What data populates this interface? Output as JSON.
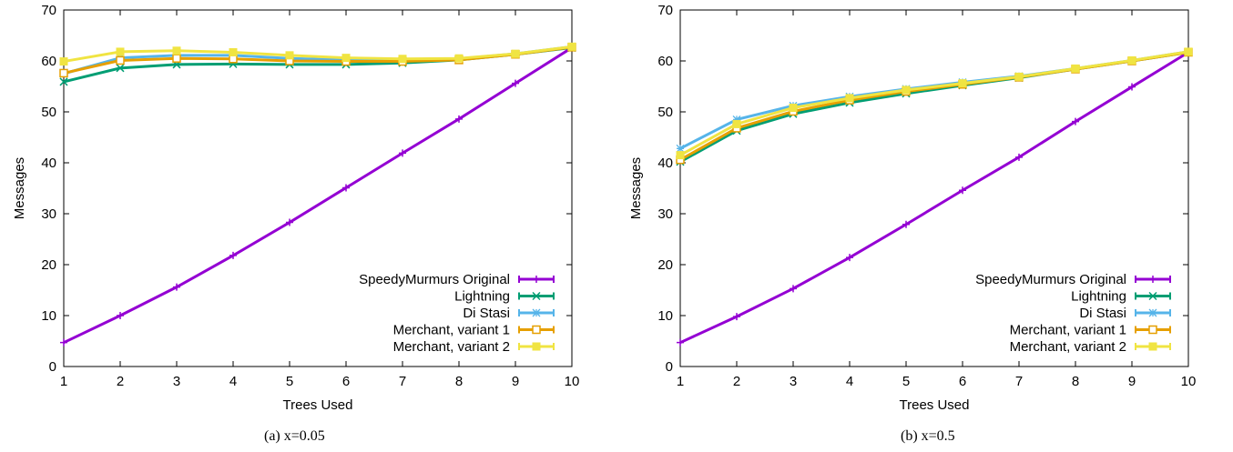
{
  "chart_data": [
    {
      "type": "line",
      "caption": "(a)  x=0.05",
      "xlabel": "Trees Used",
      "ylabel": "Messages",
      "xlim": [
        1,
        10
      ],
      "ylim": [
        0,
        70
      ],
      "xticks": [
        "1",
        "2",
        "3",
        "4",
        "5",
        "6",
        "7",
        "8",
        "9",
        "10"
      ],
      "yticks": [
        "0",
        "10",
        "20",
        "30",
        "40",
        "50",
        "60",
        "70"
      ],
      "grid": false,
      "legend_position": "bottom-right",
      "x": [
        1,
        2,
        3,
        4,
        5,
        6,
        7,
        8,
        9,
        10
      ],
      "series": [
        {
          "name": "SpeedyMurmurs Original",
          "values": [
            4.7,
            10.0,
            15.6,
            21.8,
            28.3,
            35.1,
            41.9,
            48.6,
            55.6,
            62.6
          ]
        },
        {
          "name": "Lightning",
          "values": [
            55.9,
            58.6,
            59.3,
            59.4,
            59.3,
            59.3,
            59.6,
            60.2,
            61.3,
            62.6
          ]
        },
        {
          "name": "Di Stasi",
          "values": [
            57.5,
            60.6,
            61.1,
            61.1,
            60.5,
            60.2,
            60.2,
            60.4,
            61.4,
            62.8
          ]
        },
        {
          "name": "Merchant, variant 1",
          "values": [
            57.6,
            60.1,
            60.5,
            60.4,
            60.0,
            59.9,
            59.9,
            60.2,
            61.3,
            62.7
          ]
        },
        {
          "name": "Merchant, variant 2",
          "values": [
            59.9,
            61.8,
            62.0,
            61.7,
            61.1,
            60.6,
            60.4,
            60.5,
            61.4,
            62.8
          ]
        }
      ]
    },
    {
      "type": "line",
      "caption": "(b)  x=0.5",
      "xlabel": "Trees Used",
      "ylabel": "Messages",
      "xlim": [
        1,
        10
      ],
      "ylim": [
        0,
        70
      ],
      "xticks": [
        "1",
        "2",
        "3",
        "4",
        "5",
        "6",
        "7",
        "8",
        "9",
        "10"
      ],
      "yticks": [
        "0",
        "10",
        "20",
        "30",
        "40",
        "50",
        "60",
        "70"
      ],
      "grid": false,
      "legend_position": "bottom-right",
      "x": [
        1,
        2,
        3,
        4,
        5,
        6,
        7,
        8,
        9,
        10
      ],
      "series": [
        {
          "name": "SpeedyMurmurs Original",
          "values": [
            4.7,
            9.8,
            15.3,
            21.4,
            27.9,
            34.6,
            41.1,
            48.1,
            54.9,
            61.7
          ]
        },
        {
          "name": "Lightning",
          "values": [
            40.2,
            46.3,
            49.6,
            51.8,
            53.6,
            55.2,
            56.7,
            58.4,
            60.0,
            61.7
          ]
        },
        {
          "name": "Di Stasi",
          "values": [
            42.8,
            48.5,
            51.2,
            53.0,
            54.5,
            55.8,
            57.0,
            58.5,
            60.1,
            61.8
          ]
        },
        {
          "name": "Merchant, variant 1",
          "values": [
            40.6,
            46.8,
            50.1,
            52.3,
            54.0,
            55.4,
            56.8,
            58.4,
            60.0,
            61.7
          ]
        },
        {
          "name": "Merchant, variant 2",
          "values": [
            41.5,
            47.6,
            50.8,
            52.7,
            54.3,
            55.6,
            56.9,
            58.5,
            60.1,
            61.8
          ]
        }
      ]
    }
  ],
  "colors": {
    "SpeedyMurmurs Original": "#9400d3",
    "Lightning": "#009e73",
    "Di Stasi": "#56b4e9",
    "Merchant, variant 1": "#e69f00",
    "Merchant, variant 2": "#f0e442"
  },
  "markers": {
    "SpeedyMurmurs Original": "plus",
    "Lightning": "cross",
    "Di Stasi": "star",
    "Merchant, variant 1": "square",
    "Merchant, variant 2": "filled-square"
  }
}
